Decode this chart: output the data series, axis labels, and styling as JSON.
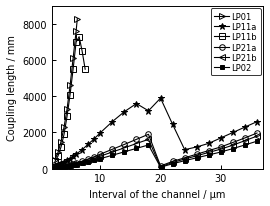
{
  "title": "",
  "xlabel": "Interval of the channel / μm",
  "ylabel": "Coupling length / mm",
  "xlim": [
    2,
    37
  ],
  "ylim": [
    0,
    9000
  ],
  "yticks": [
    0,
    2000,
    4000,
    6000,
    8000
  ],
  "xticks": [
    10,
    20,
    30
  ],
  "background_color": "#ffffff",
  "legend_entries": [
    "LP01",
    "LP11a",
    "LP11b",
    "LP21a",
    "LP21b",
    "LP02"
  ],
  "LP01": {
    "x": [
      2.5,
      3.0,
      3.5,
      4.0,
      4.5,
      5.0,
      5.5,
      6.0,
      6.2
    ],
    "y": [
      500,
      900,
      1500,
      2300,
      3300,
      4600,
      6100,
      7600,
      8300
    ],
    "marker": "tri_right",
    "color": "#000000",
    "linestyle": "-"
  },
  "LP11a": {
    "x": [
      2.5,
      3.0,
      3.5,
      4.0,
      4.5,
      5.0,
      5.5,
      6.0,
      7.0,
      8.0,
      9.0,
      10.0,
      12.0,
      14.0,
      16.0,
      18.0,
      20.0,
      22.0,
      24.0,
      26.0,
      28.0,
      30.0,
      32.0,
      34.0,
      36.0
    ],
    "y": [
      200,
      250,
      300,
      370,
      460,
      560,
      680,
      800,
      1050,
      1350,
      1650,
      1980,
      2600,
      3150,
      3600,
      3200,
      3900,
      2450,
      1050,
      1200,
      1400,
      1700,
      2000,
      2300,
      2600
    ],
    "marker": "star",
    "color": "#000000",
    "linestyle": "-"
  },
  "LP11b": {
    "x": [
      2.5,
      3.0,
      3.5,
      4.0,
      4.5,
      5.0,
      5.5,
      6.0,
      6.5,
      7.0,
      7.5
    ],
    "y": [
      400,
      700,
      1200,
      1900,
      2900,
      4100,
      5500,
      7000,
      7300,
      6500,
      5500
    ],
    "marker": "square",
    "color": "#000000",
    "linestyle": "-"
  },
  "LP21a": {
    "x": [
      2.5,
      3.0,
      3.5,
      4.0,
      4.5,
      5.0,
      5.5,
      6.0,
      7.0,
      8.0,
      9.0,
      10.0,
      12.0,
      14.0,
      16.0,
      18.0,
      20.0,
      22.0,
      24.0,
      26.0,
      28.0,
      30.0,
      32.0,
      34.0,
      36.0
    ],
    "y": [
      80,
      100,
      120,
      150,
      180,
      215,
      260,
      305,
      410,
      530,
      660,
      800,
      1070,
      1340,
      1620,
      1900,
      150,
      400,
      600,
      800,
      1000,
      1200,
      1450,
      1700,
      1970
    ],
    "marker": "circle",
    "color": "#000000",
    "linestyle": "-"
  },
  "LP21b": {
    "x": [
      2.5,
      3.0,
      3.5,
      4.0,
      4.5,
      5.0,
      5.5,
      6.0,
      7.0,
      8.0,
      9.0,
      10.0,
      12.0,
      14.0,
      16.0,
      18.0,
      20.0,
      22.0,
      24.0,
      26.0,
      28.0,
      30.0,
      32.0,
      34.0,
      36.0
    ],
    "y": [
      70,
      90,
      110,
      135,
      160,
      192,
      230,
      270,
      360,
      460,
      570,
      690,
      920,
      1150,
      1390,
      1620,
      100,
      340,
      530,
      710,
      900,
      1080,
      1300,
      1550,
      1800
    ],
    "marker": "tri_left",
    "color": "#000000",
    "linestyle": "-"
  },
  "LP02": {
    "x": [
      2.5,
      3.0,
      3.5,
      4.0,
      4.5,
      5.0,
      5.5,
      6.0,
      7.0,
      8.0,
      9.0,
      10.0,
      12.0,
      14.0,
      16.0,
      18.0,
      20.0,
      22.0,
      24.0,
      26.0,
      28.0,
      30.0,
      32.0,
      34.0,
      36.0
    ],
    "y": [
      60,
      75,
      90,
      110,
      130,
      155,
      185,
      215,
      285,
      365,
      455,
      550,
      740,
      930,
      1120,
      1310,
      80,
      270,
      440,
      600,
      760,
      920,
      1110,
      1310,
      1520
    ],
    "marker": "square_filled",
    "color": "#000000",
    "linestyle": "-"
  }
}
